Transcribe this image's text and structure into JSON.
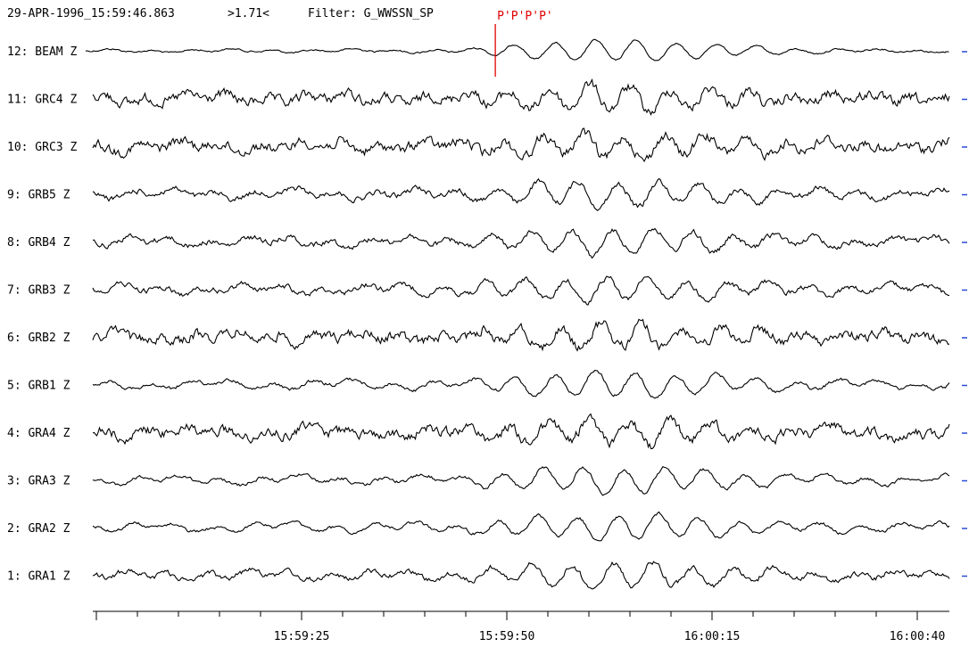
{
  "header": {
    "datetime": "29-APR-1996_15:59:46.863",
    "scale": ">1.71<",
    "filter": "Filter: G_WWSSN_SP"
  },
  "colors": {
    "trace": "#000000",
    "phase": "#e00000",
    "marker": "#2a4bd7"
  },
  "chart_data": {
    "type": "line",
    "title": "",
    "xlabel": "",
    "ylabel": "",
    "time_ticks": [
      "15:59:25",
      "15:59:50",
      "16:00:15",
      "16:00:40"
    ],
    "channels": [
      {
        "label": "12: BEAM Z",
        "style": "beam"
      },
      {
        "label": "11: GRC4 Z",
        "style": "noisy"
      },
      {
        "label": "10: GRC3 Z",
        "style": "noisy"
      },
      {
        "label": "9: GRB5 Z",
        "style": "mid"
      },
      {
        "label": "8: GRB4 Z",
        "style": "mid"
      },
      {
        "label": "7: GRB3 Z",
        "style": "mid"
      },
      {
        "label": "6: GRB2 Z",
        "style": "noisy"
      },
      {
        "label": "5: GRB1 Z",
        "style": "smooth"
      },
      {
        "label": "4: GRA4 Z",
        "style": "noisy"
      },
      {
        "label": "3: GRA3 Z",
        "style": "smooth"
      },
      {
        "label": "2: GRA2 Z",
        "style": "smooth"
      },
      {
        "label": "1: GRA1 Z",
        "style": "mid"
      }
    ],
    "phase_pick": {
      "label": "P'P'P'P'",
      "time": "15:59:48.6"
    }
  }
}
